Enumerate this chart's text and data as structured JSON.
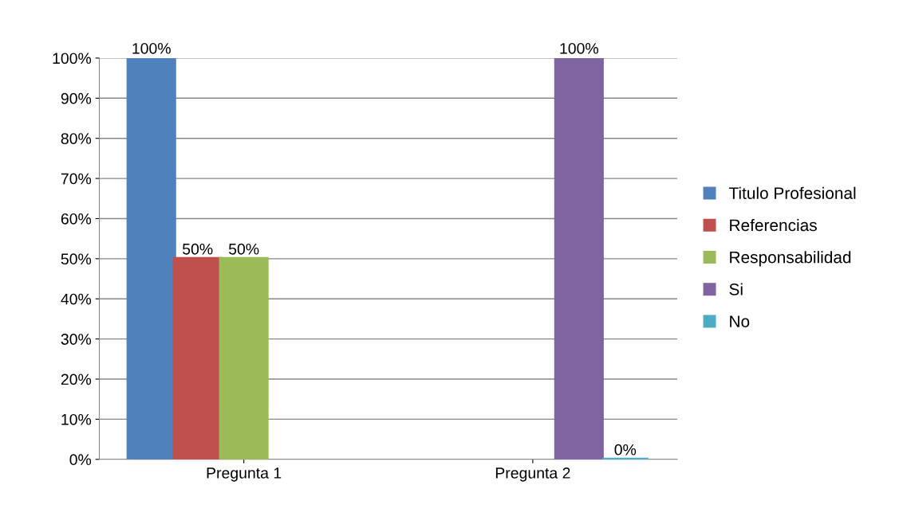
{
  "chart_data": {
    "type": "bar",
    "categories": [
      "Pregunta 1",
      "Pregunta 2"
    ],
    "series": [
      {
        "name": "Titulo Profesional",
        "color": "#4f81bd",
        "values": [
          100,
          null
        ],
        "value_labels": [
          "100%",
          null
        ]
      },
      {
        "name": "Referencias",
        "color": "#c0504d",
        "values": [
          50,
          null
        ],
        "value_labels": [
          "50%",
          null
        ]
      },
      {
        "name": "Responsabilidad",
        "color": "#9bbb59",
        "values": [
          50,
          null
        ],
        "value_labels": [
          "50%",
          null
        ]
      },
      {
        "name": "Si",
        "color": "#8064a2",
        "values": [
          null,
          100
        ],
        "value_labels": [
          null,
          "100%"
        ]
      },
      {
        "name": "No",
        "color": "#4bacc6",
        "values": [
          null,
          0
        ],
        "value_labels": [
          null,
          "0%"
        ]
      }
    ],
    "ylim": [
      0,
      100
    ],
    "yticks": [
      {
        "value": 0,
        "label": "0%"
      },
      {
        "value": 10,
        "label": "10%"
      },
      {
        "value": 20,
        "label": "20%"
      },
      {
        "value": 30,
        "label": "30%"
      },
      {
        "value": 40,
        "label": "40%"
      },
      {
        "value": 50,
        "label": "50%"
      },
      {
        "value": 60,
        "label": "60%"
      },
      {
        "value": 70,
        "label": "70%"
      },
      {
        "value": 80,
        "label": "80%"
      },
      {
        "value": 90,
        "label": "90%"
      },
      {
        "value": 100,
        "label": "100%"
      }
    ],
    "grid": "y",
    "legend": "right"
  }
}
